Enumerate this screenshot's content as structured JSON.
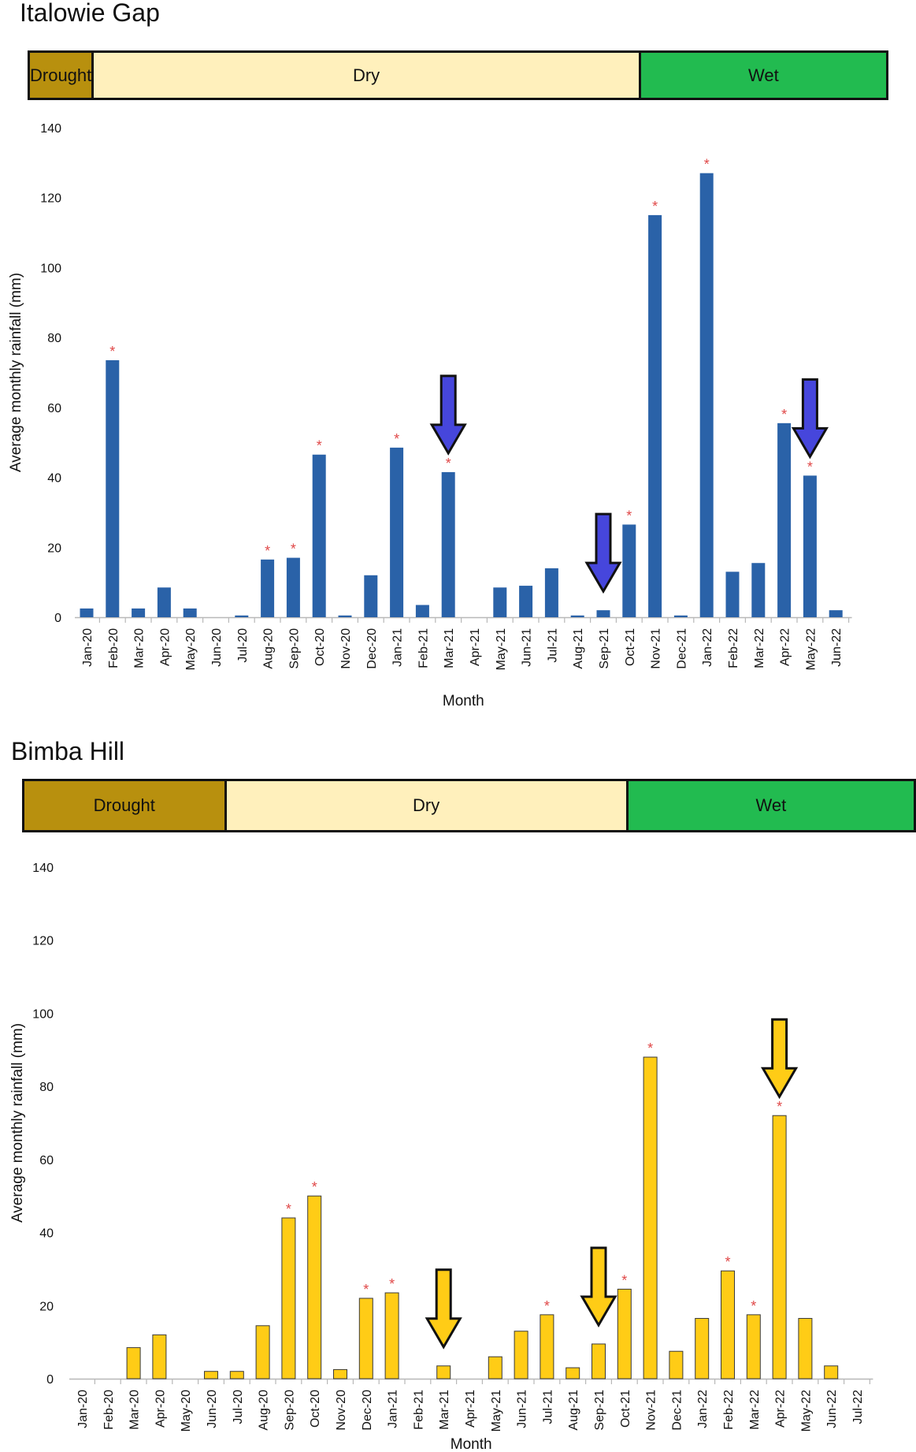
{
  "colors": {
    "drought": "#b8900e",
    "dry": "#fff0bc",
    "wet": "#22bb50",
    "italowie_bar": "#2a62a8",
    "bimba_bar": "#ffcc16",
    "italowie_arrow": "#4646dc",
    "bimba_arrow": "#ffcc16",
    "star": "#e04848"
  },
  "chart_data": [
    {
      "type": "bar",
      "title": "Italowie Gap",
      "xlabel": "Month",
      "ylabel": "Average monthly rainfall (mm)",
      "ylim": [
        0,
        140
      ],
      "yticks": [
        0,
        20,
        40,
        60,
        80,
        100,
        120,
        140
      ],
      "seasons": [
        {
          "label": "Drought",
          "start": "Jan-20",
          "end": "Feb-20",
          "color_key": "drought"
        },
        {
          "label": "Dry",
          "start": "Feb-20",
          "end": "Oct-21",
          "color_key": "dry"
        },
        {
          "label": "Wet",
          "start": "Oct-21",
          "end": "Jun-22",
          "color_key": "wet"
        }
      ],
      "categories": [
        "Jan-20",
        "Feb-20",
        "Mar-20",
        "Apr-20",
        "May-20",
        "Jun-20",
        "Jul-20",
        "Aug-20",
        "Sep-20",
        "Oct-20",
        "Nov-20",
        "Dec-20",
        "Jan-21",
        "Feb-21",
        "Mar-21",
        "Apr-21",
        "May-21",
        "Jun-21",
        "Jul-21",
        "Aug-21",
        "Sep-21",
        "Oct-21",
        "Nov-21",
        "Dec-21",
        "Jan-22",
        "Feb-22",
        "Mar-22",
        "Apr-22",
        "May-22",
        "Jun-22"
      ],
      "values": [
        2.5,
        73.5,
        2.5,
        8.5,
        2.5,
        0,
        0.5,
        16.5,
        17,
        46.5,
        0.5,
        12,
        48.5,
        3.5,
        41.5,
        0,
        8.5,
        9,
        14,
        0.5,
        2,
        26.5,
        115,
        0.5,
        127,
        13,
        15.5,
        55.5,
        40.5,
        2
      ],
      "significant": [
        "Feb-20",
        "Aug-20",
        "Sep-20",
        "Oct-20",
        "Jan-21",
        "Mar-21",
        "Oct-21",
        "Nov-21",
        "Jan-22",
        "Apr-22",
        "May-22"
      ],
      "arrows": [
        "Mar-21",
        "Sep-21",
        "May-22"
      ]
    },
    {
      "type": "bar",
      "title": "Bimba Hill",
      "xlabel": "Month",
      "ylabel": "Average monthly rainfall (mm)",
      "ylim": [
        0,
        140
      ],
      "yticks": [
        0,
        20,
        40,
        60,
        80,
        100,
        120,
        140
      ],
      "seasons": [
        {
          "label": "Drought",
          "start": "Jan-20",
          "end": "Aug-20",
          "color_key": "drought"
        },
        {
          "label": "Dry",
          "start": "Aug-20",
          "end": "Oct-21",
          "color_key": "dry"
        },
        {
          "label": "Wet",
          "start": "Oct-21",
          "end": "Jul-22",
          "color_key": "wet"
        }
      ],
      "categories": [
        "Jan-20",
        "Feb-20",
        "Mar-20",
        "Apr-20",
        "May-20",
        "Jun-20",
        "Jul-20",
        "Aug-20",
        "Sep-20",
        "Oct-20",
        "Nov-20",
        "Dec-20",
        "Jan-21",
        "Feb-21",
        "Mar-21",
        "Apr-21",
        "May-21",
        "Jun-21",
        "Jul-21",
        "Aug-21",
        "Sep-21",
        "Oct-21",
        "Nov-21",
        "Dec-21",
        "Jan-22",
        "Feb-22",
        "Mar-22",
        "Apr-22",
        "May-22",
        "Jun-22",
        "Jul-22"
      ],
      "values": [
        0,
        0,
        8.5,
        12,
        0,
        2,
        2,
        14.5,
        44,
        50,
        2.5,
        22,
        23.5,
        0,
        3.5,
        0,
        6,
        13,
        17.5,
        3,
        9.5,
        24.5,
        88,
        7.5,
        16.5,
        29.5,
        17.5,
        72,
        16.5,
        3.5,
        0
      ],
      "significant": [
        "Sep-20",
        "Oct-20",
        "Dec-20",
        "Jan-21",
        "Jul-21",
        "Oct-21",
        "Nov-21",
        "Feb-22",
        "Mar-22",
        "Apr-22"
      ],
      "arrows": [
        "Mar-21",
        "Sep-21",
        "Apr-22"
      ]
    }
  ]
}
